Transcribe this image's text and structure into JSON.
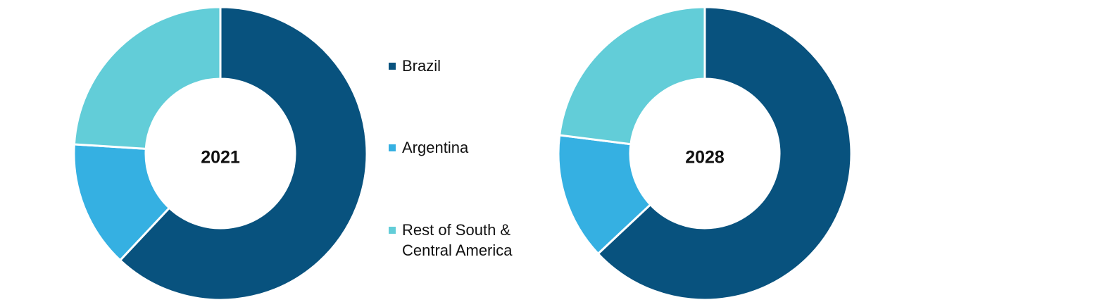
{
  "chart_data": [
    {
      "type": "donut",
      "title": "2021",
      "categories": [
        "Brazil",
        "Argentina",
        "Rest of South & Central America"
      ],
      "values": [
        62,
        14,
        24
      ],
      "colors": [
        "#08527e",
        "#35b0e2",
        "#62cdd8"
      ]
    },
    {
      "type": "donut",
      "title": "2028",
      "categories": [
        "Brazil",
        "Argentina",
        "Rest of South & Central America"
      ],
      "values": [
        63,
        14,
        23
      ],
      "colors": [
        "#08527e",
        "#35b0e2",
        "#62cdd8"
      ]
    }
  ]
}
